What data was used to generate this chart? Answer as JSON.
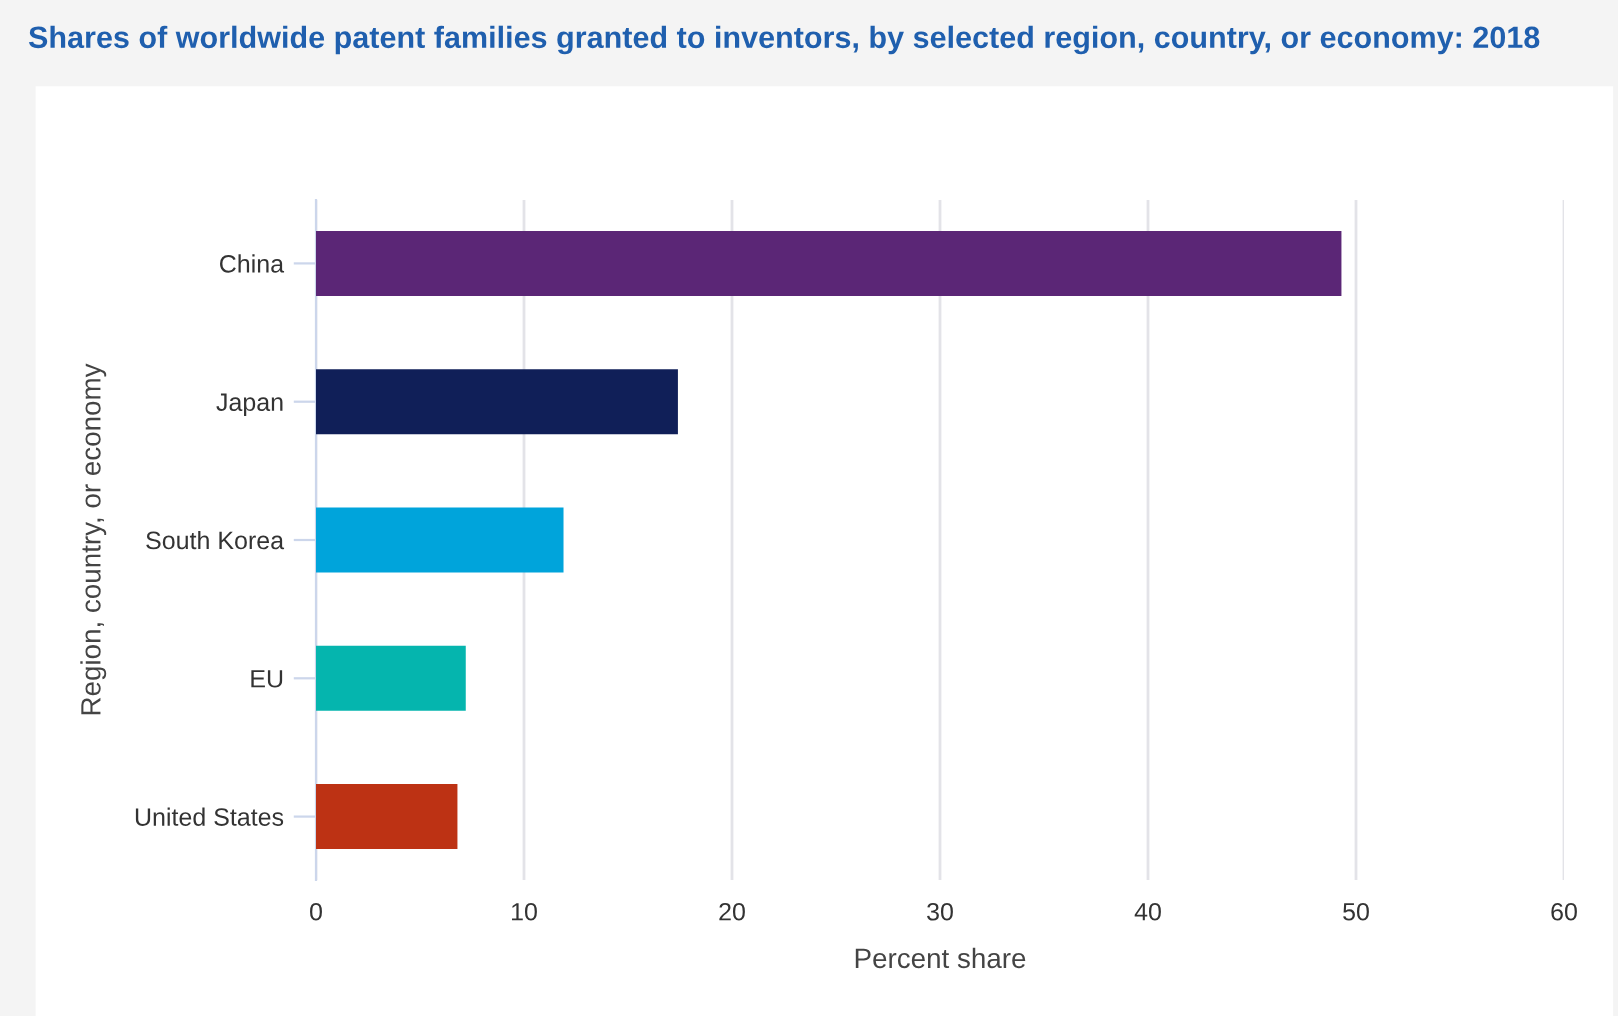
{
  "chart_data": {
    "type": "bar",
    "orientation": "horizontal",
    "title": "Shares of worldwide patent families granted to inventors, by selected region, country, or economy: 2018",
    "xlabel": "Percent share",
    "ylabel": "Region, country, or economy",
    "categories": [
      "China",
      "Japan",
      "South Korea",
      "EU",
      "United States"
    ],
    "values": [
      49.3,
      17.4,
      11.9,
      7.2,
      6.8
    ],
    "colors": [
      "#5b2676",
      "#101f58",
      "#00a4db",
      "#05b5ae",
      "#bd3214"
    ],
    "xlim": [
      0,
      60
    ],
    "xticks": [
      0,
      10,
      20,
      30,
      40,
      50,
      60
    ],
    "grid": "x",
    "legend": false
  }
}
